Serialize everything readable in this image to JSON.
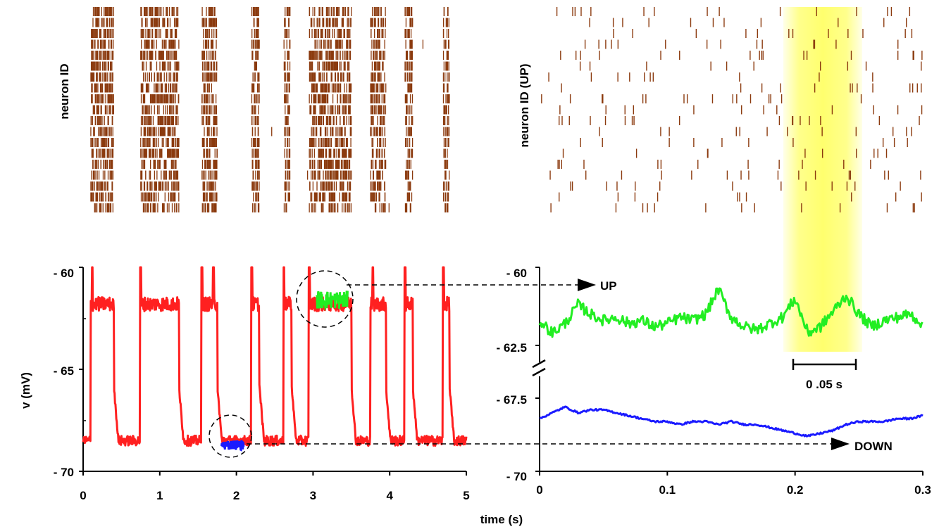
{
  "colors": {
    "spike": "#8b3a0e",
    "red_trace": "#ff2020",
    "green_trace": "#22ee22",
    "blue_trace": "#1b1bff",
    "highlight": "#ffff66",
    "axis": "#000000"
  },
  "labels": {
    "raster_left_ylabel": "neuron ID",
    "raster_right_ylabel": "neuron ID (UP)",
    "voltage_ylabel": "v (mV)",
    "time_xlabel": "time (s)",
    "up_label": "UP",
    "down_label": "DOWN",
    "scale_bar_label": "0 .05 s"
  },
  "chart_data": [
    {
      "type": "raster",
      "panel": "top-left",
      "ylabel": "neuron ID",
      "neuron_count": 19,
      "xlim": [
        0,
        5
      ],
      "note": "Spikes occur in bursts during UP states; sparse during DOWN states",
      "burst_windows_s": [
        [
          0.1,
          0.4
        ],
        [
          0.75,
          1.25
        ],
        [
          1.55,
          1.75
        ],
        [
          2.2,
          2.3
        ],
        [
          2.62,
          2.7
        ],
        [
          2.95,
          3.5
        ],
        [
          3.75,
          3.95
        ],
        [
          4.2,
          4.3
        ],
        [
          4.7,
          4.78
        ]
      ]
    },
    {
      "type": "raster",
      "panel": "top-right",
      "ylabel": "neuron ID (UP)",
      "neuron_count": 19,
      "xlim": [
        0,
        0.3
      ],
      "highlight_window_s": [
        0.2,
        0.25
      ]
    },
    {
      "type": "line",
      "panel": "bottom-left",
      "xlabel": "time (s)",
      "ylabel": "v (mV)",
      "xlim": [
        0,
        5
      ],
      "ylim": [
        -70,
        -60
      ],
      "xticks": [
        "0",
        "1",
        "2",
        "3",
        "4",
        "5"
      ],
      "yticks": [
        "- 60",
        "- 65",
        "- 70"
      ],
      "up_level_mV": -61.8,
      "down_level_mV": -68.5,
      "up_intervals_s": [
        [
          0.1,
          0.4
        ],
        [
          0.75,
          1.25
        ],
        [
          1.55,
          1.75
        ],
        [
          2.2,
          2.3
        ],
        [
          2.62,
          2.72
        ],
        [
          2.95,
          3.5
        ],
        [
          3.75,
          3.95
        ],
        [
          4.2,
          4.3
        ],
        [
          4.7,
          4.78
        ]
      ],
      "spike_times_s": [
        0.12,
        0.75,
        1.55,
        1.7,
        2.2,
        2.62,
        2.95,
        3.78,
        4.2,
        4.7
      ],
      "series": [
        {
          "color": "red",
          "values_note": "full trace"
        },
        {
          "color": "blue",
          "segment_s": [
            1.8,
            2.1
          ],
          "approx_mV": -68.7
        },
        {
          "color": "green",
          "segment_s": [
            3.05,
            3.45
          ],
          "approx_mV": -61.6
        }
      ]
    },
    {
      "type": "line",
      "panel": "bottom-right",
      "xlabel": "time (s)",
      "xlim": [
        0,
        0.3
      ],
      "xticks": [
        "0",
        "0.1",
        "0.2",
        "0.3"
      ],
      "yticks_upper": [
        "- 60",
        "- 62.5"
      ],
      "yticks_lower": [
        "- 67.5",
        "- 70"
      ],
      "axis_break": true,
      "series": [
        {
          "name": "UP",
          "color": "green",
          "x": [
            0,
            0.01,
            0.02,
            0.03,
            0.04,
            0.05,
            0.06,
            0.07,
            0.08,
            0.09,
            0.1,
            0.11,
            0.12,
            0.13,
            0.14,
            0.15,
            0.16,
            0.17,
            0.18,
            0.19,
            0.2,
            0.21,
            0.22,
            0.23,
            0.24,
            0.25,
            0.26,
            0.27,
            0.28,
            0.29,
            0.3
          ],
          "y": [
            -61.7,
            -62.1,
            -61.8,
            -61.2,
            -61.5,
            -61.7,
            -61.6,
            -61.8,
            -61.7,
            -61.9,
            -61.8,
            -61.6,
            -61.7,
            -61.5,
            -60.7,
            -61.6,
            -61.9,
            -62.0,
            -61.8,
            -61.6,
            -61.0,
            -62.1,
            -61.9,
            -61.4,
            -60.9,
            -61.5,
            -61.9,
            -61.7,
            -61.6,
            -61.5,
            -61.8
          ]
        },
        {
          "name": "DOWN",
          "color": "blue",
          "x": [
            0,
            0.01,
            0.02,
            0.03,
            0.04,
            0.05,
            0.06,
            0.07,
            0.08,
            0.09,
            0.1,
            0.11,
            0.12,
            0.13,
            0.14,
            0.15,
            0.16,
            0.17,
            0.18,
            0.19,
            0.2,
            0.21,
            0.22,
            0.23,
            0.24,
            0.25,
            0.26,
            0.27,
            0.28,
            0.29,
            0.3
          ],
          "y": [
            -68.2,
            -68.0,
            -67.8,
            -68.0,
            -67.9,
            -67.9,
            -68.0,
            -68.1,
            -68.2,
            -68.3,
            -68.3,
            -68.4,
            -68.3,
            -68.3,
            -68.4,
            -68.3,
            -68.4,
            -68.4,
            -68.5,
            -68.6,
            -68.7,
            -68.8,
            -68.7,
            -68.6,
            -68.4,
            -68.3,
            -68.3,
            -68.3,
            -68.2,
            -68.2,
            -68.1
          ]
        }
      ]
    }
  ]
}
